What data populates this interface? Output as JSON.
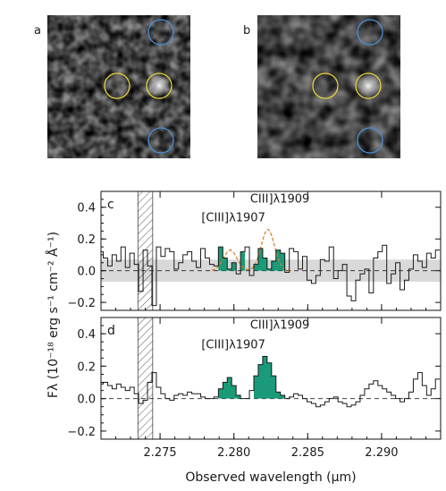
{
  "images": [
    {
      "label": "a",
      "circles": {
        "yellow": 2,
        "blue": 2
      }
    },
    {
      "label": "b",
      "circles": {
        "yellow": 2,
        "blue": 2
      }
    }
  ],
  "chart_data": [
    {
      "type": "line",
      "panel_label": "c",
      "x": [
        2.271,
        2.2713,
        2.2716,
        2.2719,
        2.2722,
        2.2725,
        2.2728,
        2.2731,
        2.2734,
        2.2737,
        2.274,
        2.2743,
        2.2746,
        2.2749,
        2.2752,
        2.2755,
        2.2758,
        2.2761,
        2.2764,
        2.2767,
        2.277,
        2.2773,
        2.2776,
        2.2779,
        2.2782,
        2.2785,
        2.2788,
        2.2791,
        2.2794,
        2.2797,
        2.28,
        2.2803,
        2.2806,
        2.2809,
        2.2812,
        2.2815,
        2.2818,
        2.2821,
        2.2824,
        2.2827,
        2.283,
        2.2833,
        2.2836,
        2.2839,
        2.2842,
        2.2845,
        2.2848,
        2.2851,
        2.2854,
        2.2857,
        2.286,
        2.2863,
        2.2866,
        2.2869,
        2.2872,
        2.2875,
        2.2878,
        2.2881,
        2.2884,
        2.2887,
        2.289,
        2.2893,
        2.2896,
        2.2899,
        2.2902,
        2.2905,
        2.2908,
        2.2911,
        2.2914,
        2.2917,
        2.292,
        2.2923,
        2.2926,
        2.2929,
        2.2932,
        2.2935,
        2.2938
      ],
      "series": [
        {
          "values": [
            0.12,
            0.08,
            0.03,
            0.1,
            0.06,
            0.15,
            0.02,
            0.11,
            0.04,
            -0.13,
            0.13,
            0.03,
            -0.22,
            0.15,
            0.09,
            0.14,
            0.12,
            0.01,
            0.05,
            0.1,
            0.12,
            0.06,
            0.02,
            0.14,
            0.08,
            0.04,
            0.03,
            0.15,
            0.08,
            0.01,
            0.05,
            -0.02,
            0.12,
            0.15,
            -0.03,
            0.04,
            0.14,
            0.08,
            0.01,
            0.06,
            0.13,
            0.11,
            -0.01,
            0.14,
            0.12,
            0.01,
            0.09,
            -0.06,
            -0.08,
            -0.03,
            0.07,
            0.06,
            0.15,
            -0.05,
            0.0,
            0.04,
            -0.16,
            -0.19,
            -0.06,
            -0.02,
            0.01,
            -0.14,
            0.08,
            0.12,
            0.16,
            -0.08,
            -0.02,
            0.05,
            -0.12,
            -0.06,
            0.01,
            0.1,
            0.06,
            0.02,
            0.11,
            0.08,
            0.13
          ]
        }
      ],
      "ylim": [
        -0.25,
        0.5
      ],
      "xlim": [
        2.271,
        2.294
      ],
      "ytick_labels": [
        "−0.2",
        "0.0",
        "0.2",
        "0.4"
      ],
      "annotations": {
        "line1": "[CIII]λ1907",
        "line2": "CIII]λ1909"
      }
    },
    {
      "type": "line",
      "panel_label": "d",
      "x": [
        2.271,
        2.2713,
        2.2716,
        2.2719,
        2.2722,
        2.2725,
        2.2728,
        2.2731,
        2.2734,
        2.2737,
        2.274,
        2.2743,
        2.2746,
        2.2749,
        2.2752,
        2.2755,
        2.2758,
        2.2761,
        2.2764,
        2.2767,
        2.277,
        2.2773,
        2.2776,
        2.2779,
        2.2782,
        2.2785,
        2.2788,
        2.2791,
        2.2794,
        2.2797,
        2.28,
        2.2803,
        2.2806,
        2.2809,
        2.2812,
        2.2815,
        2.2818,
        2.2821,
        2.2824,
        2.2827,
        2.283,
        2.2833,
        2.2836,
        2.2839,
        2.2842,
        2.2845,
        2.2848,
        2.2851,
        2.2854,
        2.2857,
        2.286,
        2.2863,
        2.2866,
        2.2869,
        2.2872,
        2.2875,
        2.2878,
        2.2881,
        2.2884,
        2.2887,
        2.289,
        2.2893,
        2.2896,
        2.2899,
        2.2902,
        2.2905,
        2.2908,
        2.2911,
        2.2914,
        2.2917,
        2.292,
        2.2923,
        2.2926,
        2.2929,
        2.2932,
        2.2935,
        2.2938
      ],
      "series": [
        {
          "values": [
            0.09,
            0.1,
            0.08,
            0.06,
            0.09,
            0.07,
            0.05,
            0.07,
            0.03,
            -0.03,
            -0.01,
            0.1,
            0.16,
            0.07,
            0.03,
            0.0,
            -0.01,
            0.02,
            0.03,
            0.02,
            0.04,
            0.03,
            0.03,
            0.01,
            0.0,
            0.0,
            0.01,
            0.06,
            0.1,
            0.13,
            0.08,
            0.02,
            0.0,
            0.0,
            0.05,
            0.14,
            0.21,
            0.26,
            0.22,
            0.14,
            0.04,
            0.02,
            0.0,
            0.01,
            0.03,
            0.02,
            0.0,
            -0.02,
            -0.03,
            -0.05,
            -0.04,
            -0.02,
            0.0,
            0.01,
            -0.02,
            -0.03,
            -0.05,
            -0.04,
            -0.02,
            0.02,
            0.06,
            0.09,
            0.11,
            0.08,
            0.06,
            0.04,
            0.02,
            0.0,
            -0.02,
            0.0,
            0.04,
            0.12,
            0.16,
            0.08,
            0.02,
            0.06,
            0.12
          ]
        }
      ],
      "ylim": [
        -0.25,
        0.5
      ],
      "xlim": [
        2.271,
        2.294
      ],
      "ytick_labels": [
        "−0.2",
        "0.0",
        "0.2",
        "0.4"
      ],
      "annotations": {
        "line1": "[CIII]λ1907",
        "line2": "CIII]λ1909"
      }
    }
  ],
  "shared_axes": {
    "xticks": [
      2.275,
      2.28,
      2.285,
      2.29
    ],
    "xtick_labels": [
      "2.275",
      "2.280",
      "2.285",
      "2.290"
    ],
    "yticks": [
      -0.2,
      0.0,
      0.2,
      0.4
    ],
    "xlabel": "Observed wavelength (μm)",
    "ylabel": "Fλ (10⁻¹⁸ erg s⁻¹ cm⁻² Å⁻¹)",
    "excluded_region": [
      2.2735,
      2.2745
    ],
    "line_fill_ranges": [
      [
        2.2789,
        2.2806
      ],
      [
        2.2815,
        2.2836
      ]
    ]
  },
  "colors": {
    "line": "#1a1a1a",
    "emission_fill": "#1a9a78",
    "noise_band": "#d9d9d9",
    "fit": "#e07a1f",
    "circle_yellow": "#e8d23a",
    "circle_blue": "#4a8fd8"
  }
}
